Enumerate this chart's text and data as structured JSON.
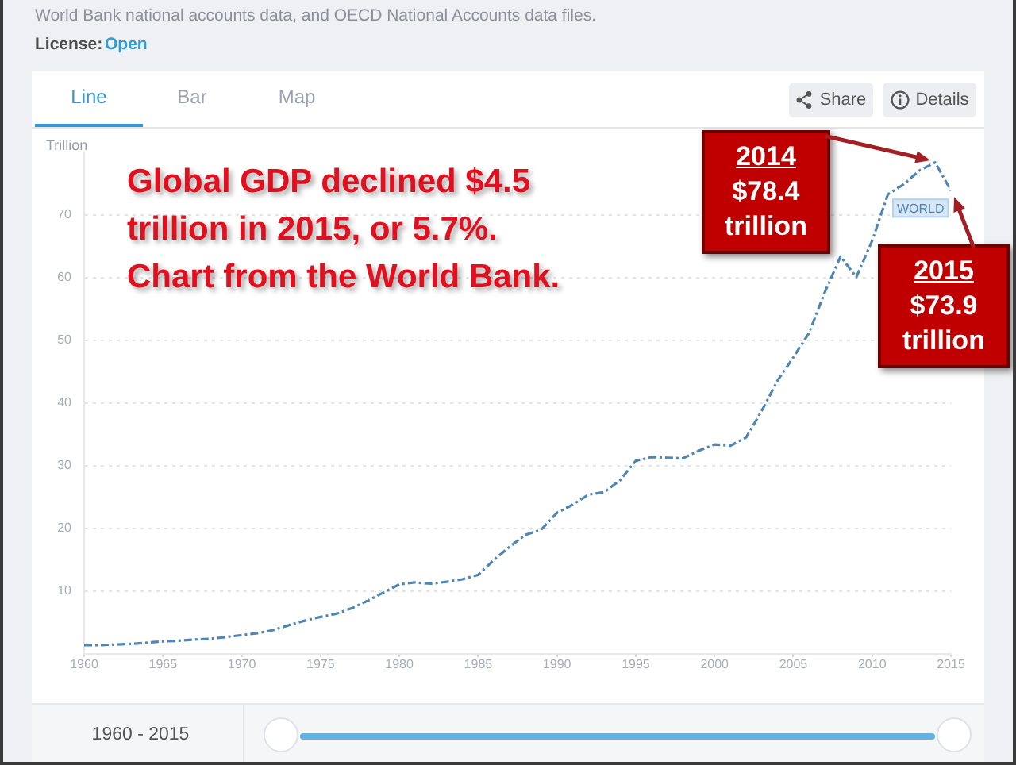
{
  "chart_data": {
    "type": "line",
    "ylabel": "Trillion",
    "x": [
      1960,
      1961,
      1962,
      1963,
      1964,
      1965,
      1966,
      1967,
      1968,
      1969,
      1970,
      1971,
      1972,
      1973,
      1974,
      1975,
      1976,
      1977,
      1978,
      1979,
      1980,
      1981,
      1982,
      1983,
      1984,
      1985,
      1986,
      1987,
      1988,
      1989,
      1990,
      1991,
      1992,
      1993,
      1994,
      1995,
      1996,
      1997,
      1998,
      1999,
      2000,
      2001,
      2002,
      2003,
      2004,
      2005,
      2006,
      2007,
      2008,
      2009,
      2010,
      2011,
      2012,
      2013,
      2014,
      2015
    ],
    "series": [
      {
        "name": "WORLD",
        "color": "#4f86b3",
        "values": [
          1.4,
          1.4,
          1.5,
          1.6,
          1.8,
          2.0,
          2.1,
          2.3,
          2.4,
          2.7,
          3.0,
          3.3,
          3.8,
          4.6,
          5.3,
          5.9,
          6.4,
          7.3,
          8.5,
          9.8,
          11.1,
          11.4,
          11.2,
          11.5,
          11.9,
          12.6,
          15.0,
          17.1,
          19.0,
          19.8,
          22.5,
          23.8,
          25.4,
          25.8,
          27.7,
          30.8,
          31.4,
          31.3,
          31.2,
          32.4,
          33.4,
          33.2,
          34.5,
          38.8,
          43.6,
          47.3,
          51.2,
          57.7,
          63.4,
          60.1,
          65.9,
          73.3,
          74.9,
          77.1,
          78.4,
          73.9
        ]
      }
    ],
    "xlim": [
      1960,
      2015
    ],
    "xticks": [
      1960,
      1965,
      1970,
      1975,
      1980,
      1985,
      1990,
      1995,
      2000,
      2005,
      2010,
      2015
    ],
    "ylim": [
      0,
      80
    ],
    "yticks": [
      10,
      20,
      30,
      40,
      50,
      60,
      70
    ],
    "grid": "y",
    "line_style": "dashed",
    "marker": "none",
    "annotations": [
      "World Bank national accounts data, and OECD National Accounts data files.",
      "License:",
      "Open",
      "Line",
      "Bar",
      "Map",
      "Share",
      "Details",
      "1960 - 2015",
      "Global GDP declined $4.5 trillion in 2015, or 5.7%. Chart from the World Bank.",
      "2014 $78.4 trillion",
      {
        "text": "2015 $73.9 trillion",
        "x": 2015,
        "y": 73.9
      }
    ]
  }
}
